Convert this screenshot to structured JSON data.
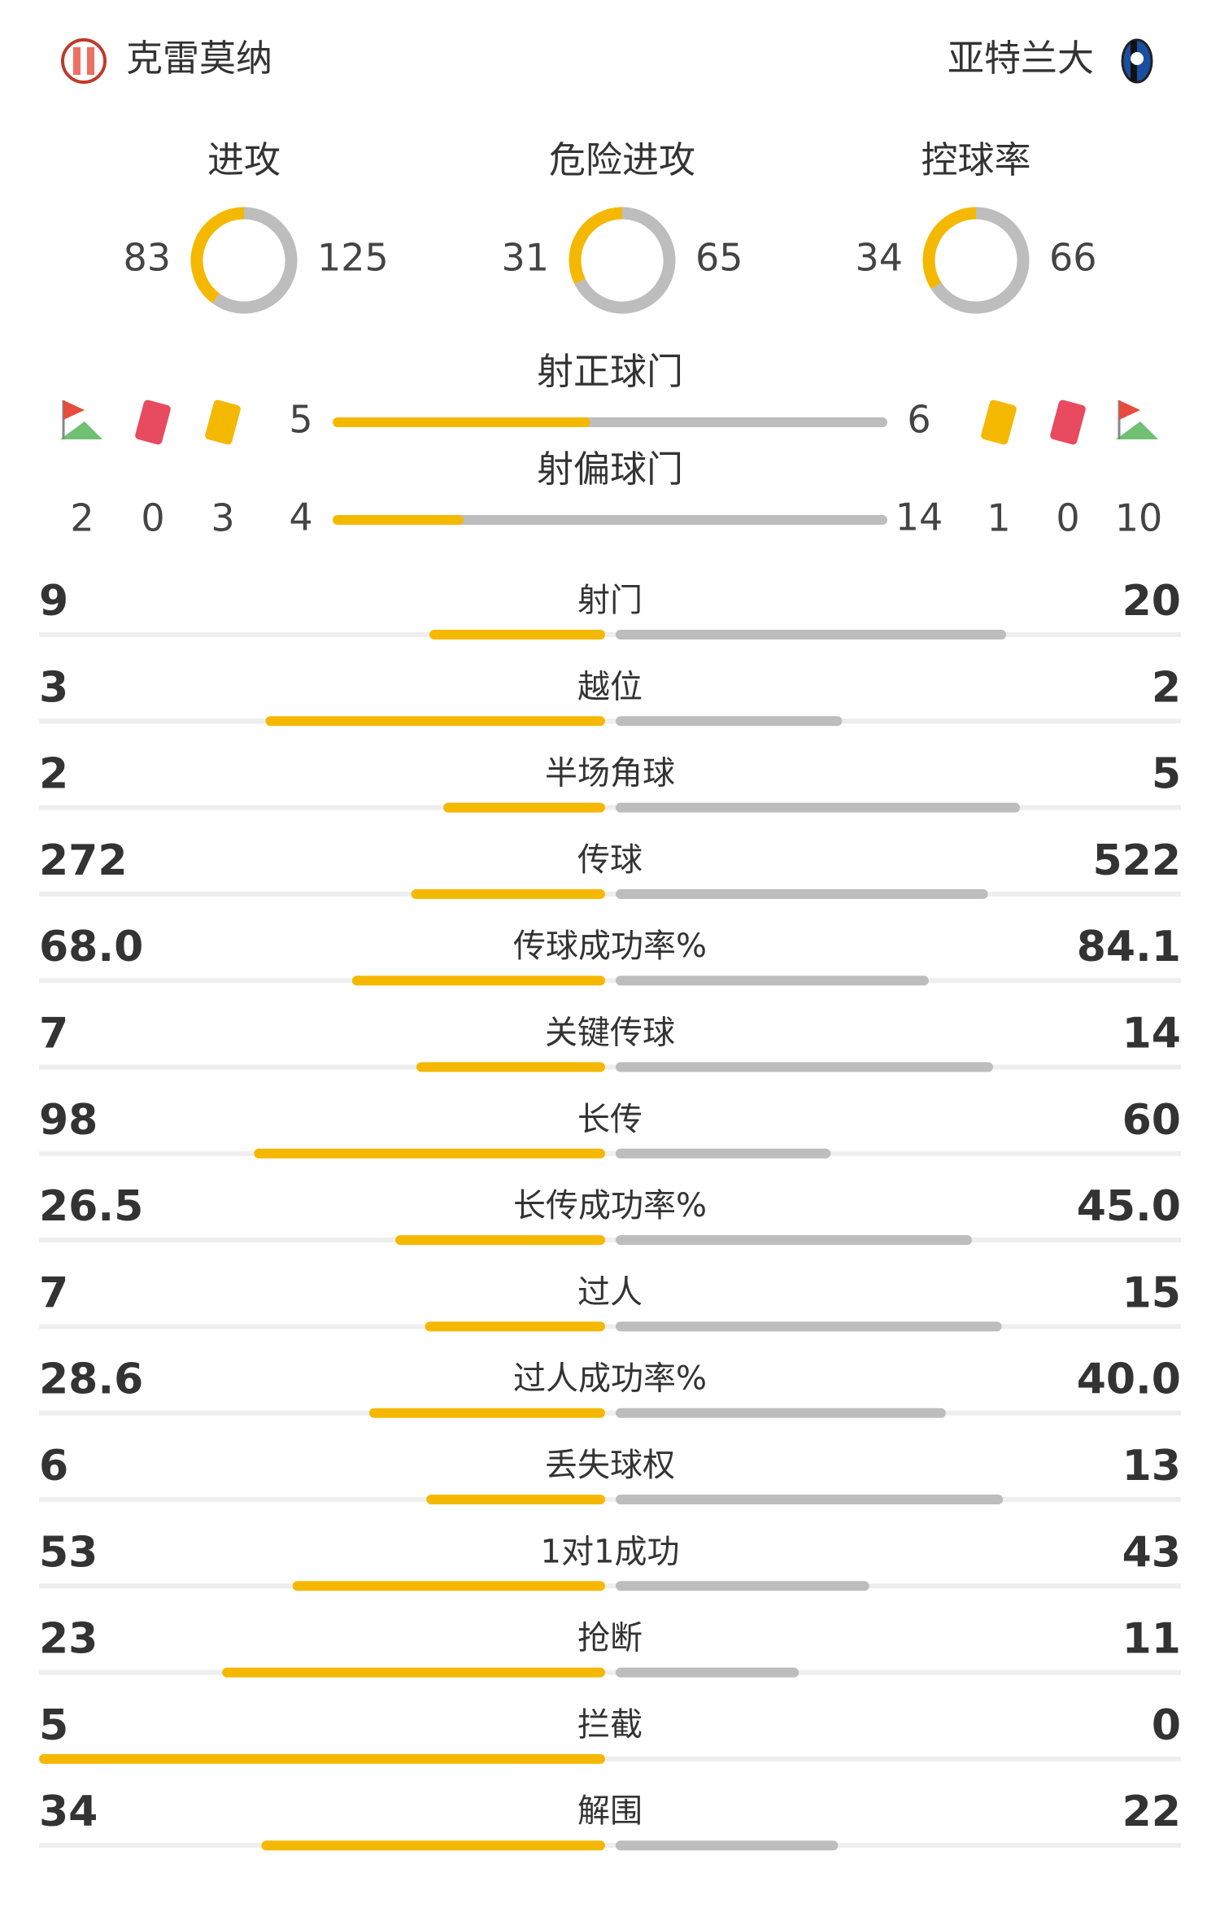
{
  "header": {
    "home": "克雷莫纳",
    "away": "亚特兰大"
  },
  "summary": [
    {
      "label": "进攻",
      "home": 83,
      "away": 125
    },
    {
      "label": "危险进攻",
      "home": 31,
      "away": 65
    },
    {
      "label": "控球率",
      "home": 34,
      "away": 66
    }
  ],
  "shots": [
    {
      "label": "射正球门",
      "home": 5,
      "away": 6
    },
    {
      "label": "射偏球门",
      "home": 4,
      "away": 14
    }
  ],
  "events": {
    "home": {
      "corners": 2,
      "red_cards": 0,
      "yellow_cards": 3
    },
    "away": {
      "yellow_cards": 1,
      "red_cards": 0,
      "corners": 10
    }
  },
  "stats": [
    {
      "label": "射门",
      "home": 9,
      "away": 20
    },
    {
      "label": "越位",
      "home": 3,
      "away": 2
    },
    {
      "label": "半场角球",
      "home": 2,
      "away": 5
    },
    {
      "label": "传球",
      "home": 272,
      "away": 522
    },
    {
      "label": "传球成功率%",
      "home": 68.0,
      "home_label": "68.0",
      "away": 84.1
    },
    {
      "label": "关键传球",
      "home": 7,
      "away": 14
    },
    {
      "label": "长传",
      "home": 98,
      "away": 60
    },
    {
      "label": "长传成功率%",
      "home": 26.5,
      "away": 45.0,
      "away_label": "45.0"
    },
    {
      "label": "过人",
      "home": 7,
      "away": 15
    },
    {
      "label": "过人成功率%",
      "home": 28.6,
      "away": 40.0,
      "away_label": "40.0"
    },
    {
      "label": "丢失球权",
      "home": 6,
      "away": 13
    },
    {
      "label": "1对1成功",
      "home": 53,
      "away": 43
    },
    {
      "label": "抢断",
      "home": 23,
      "away": 11
    },
    {
      "label": "拦截",
      "home": 5,
      "away": 0
    },
    {
      "label": "解围",
      "home": 34,
      "away": 22
    }
  ]
}
